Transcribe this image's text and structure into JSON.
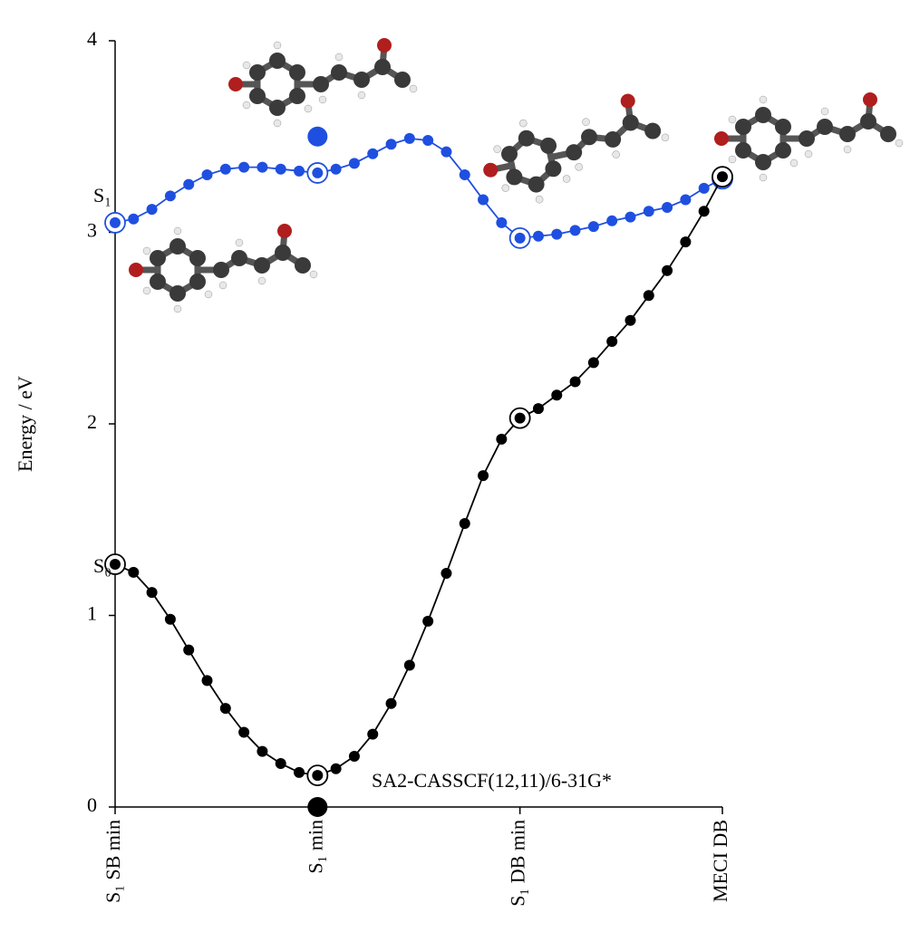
{
  "chart_data": {
    "type": "line",
    "ylabel": "Energy / eV",
    "annotation": "SA2-CASSCF(12,11)/6-31G*",
    "x": [
      0,
      1,
      2,
      3,
      4,
      5,
      6,
      7,
      8,
      9,
      10,
      11,
      12,
      13,
      14,
      15,
      16,
      17,
      18,
      19,
      20,
      21,
      22,
      23,
      24,
      25,
      26,
      27,
      28,
      29,
      30,
      31,
      32,
      33
    ],
    "xlim": [
      0,
      33
    ],
    "xticks": [
      {
        "value": 0,
        "label": "S₁ SB min"
      },
      {
        "value": 11,
        "label": "S₁ min"
      },
      {
        "value": 22,
        "label": "S₁ DB min"
      },
      {
        "value": 33,
        "label": "MECI DB"
      }
    ],
    "ylim": [
      0,
      4
    ],
    "yticks": [
      0,
      1,
      2,
      3,
      4
    ],
    "grid": false,
    "series": [
      {
        "name": "S₁",
        "color": "#1f4fe0",
        "values": [
          3.05,
          3.07,
          3.12,
          3.19,
          3.25,
          3.3,
          3.33,
          3.34,
          3.34,
          3.33,
          3.32,
          3.31,
          3.33,
          3.36,
          3.41,
          3.46,
          3.49,
          3.48,
          3.42,
          3.3,
          3.17,
          3.05,
          2.97,
          2.98,
          2.99,
          3.01,
          3.03,
          3.06,
          3.08,
          3.11,
          3.13,
          3.17,
          3.23,
          3.28
        ]
      },
      {
        "name": "S₀",
        "color": "#000000",
        "values": [
          1.267,
          1.225,
          1.12,
          0.98,
          0.82,
          0.66,
          0.515,
          0.39,
          0.29,
          0.227,
          0.18,
          0.165,
          0.2,
          0.265,
          0.38,
          0.54,
          0.74,
          0.97,
          1.22,
          1.48,
          1.73,
          1.92,
          2.03,
          2.08,
          2.15,
          2.22,
          2.32,
          2.43,
          2.54,
          2.67,
          2.8,
          2.95,
          3.11,
          3.29
        ]
      }
    ],
    "markers": [
      {
        "x": 11,
        "y": 3.5,
        "color": "#1f4fe0"
      },
      {
        "x": 11,
        "y": 0,
        "color": "#000000"
      }
    ]
  }
}
